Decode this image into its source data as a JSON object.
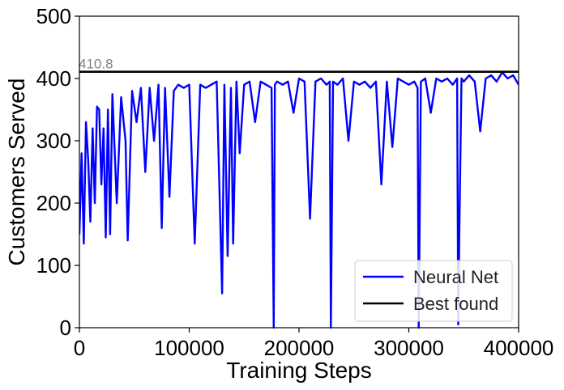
{
  "chart_data": {
    "type": "line",
    "xlabel": "Training Steps",
    "ylabel": "Customers Served",
    "xlim": [
      0,
      400000
    ],
    "ylim": [
      0,
      500
    ],
    "x_ticks": [
      0,
      100000,
      200000,
      300000,
      400000
    ],
    "x_tick_labels": [
      "0",
      "100000",
      "200000",
      "300000",
      "400000"
    ],
    "y_ticks": [
      0,
      100,
      200,
      300,
      400,
      500
    ],
    "y_tick_labels": [
      "0",
      "100",
      "200",
      "300",
      "400",
      "500"
    ],
    "grid": false,
    "legend_position": "lower-right",
    "series": [
      {
        "name": "Neural Net",
        "color": "#0000ff",
        "kind": "line",
        "x": [
          0,
          2000,
          4000,
          6000,
          8000,
          10000,
          12000,
          14000,
          16000,
          18000,
          20000,
          22000,
          24000,
          26000,
          28000,
          30000,
          34000,
          38000,
          42000,
          44000,
          48000,
          52000,
          56000,
          60000,
          64000,
          68000,
          72000,
          75000,
          78000,
          82000,
          86000,
          90000,
          95000,
          100000,
          105000,
          110000,
          115000,
          120000,
          125000,
          130000,
          132000,
          135000,
          138000,
          140000,
          143000,
          146000,
          150000,
          155000,
          160000,
          165000,
          170000,
          175000,
          177000,
          178000,
          180000,
          185000,
          190000,
          195000,
          200000,
          205000,
          210000,
          215000,
          220000,
          225000,
          228000,
          229000,
          231000,
          235000,
          240000,
          245000,
          250000,
          255000,
          260000,
          265000,
          270000,
          275000,
          280000,
          285000,
          290000,
          295000,
          300000,
          305000,
          308000,
          309000,
          311000,
          315000,
          320000,
          325000,
          330000,
          335000,
          340000,
          344000,
          345000,
          346000,
          348000,
          350000,
          355000,
          360000,
          365000,
          370000,
          375000,
          380000,
          385000,
          390000,
          395000,
          400000
        ],
        "y": [
          150,
          280,
          135,
          330,
          270,
          170,
          320,
          200,
          355,
          350,
          230,
          320,
          145,
          350,
          150,
          375,
          200,
          370,
          300,
          140,
          380,
          330,
          385,
          250,
          385,
          300,
          390,
          160,
          385,
          210,
          380,
          390,
          385,
          390,
          135,
          390,
          385,
          390,
          395,
          55,
          390,
          115,
          385,
          135,
          395,
          280,
          390,
          395,
          330,
          395,
          390,
          385,
          0,
          390,
          395,
          390,
          395,
          345,
          400,
          395,
          175,
          395,
          400,
          390,
          395,
          0,
          395,
          390,
          400,
          300,
          395,
          390,
          395,
          385,
          395,
          230,
          395,
          290,
          400,
          395,
          390,
          395,
          385,
          0,
          395,
          400,
          345,
          400,
          395,
          400,
          390,
          400,
          5,
          150,
          400,
          395,
          405,
          395,
          315,
          400,
          405,
          395,
          410,
          400,
          405,
          390
        ]
      },
      {
        "name": "Best found",
        "color": "#000000",
        "kind": "hline",
        "value": 410.8
      }
    ],
    "annotations": [
      {
        "text": "410.8",
        "x": 0,
        "y": 410.8,
        "color": "#808080"
      }
    ]
  }
}
